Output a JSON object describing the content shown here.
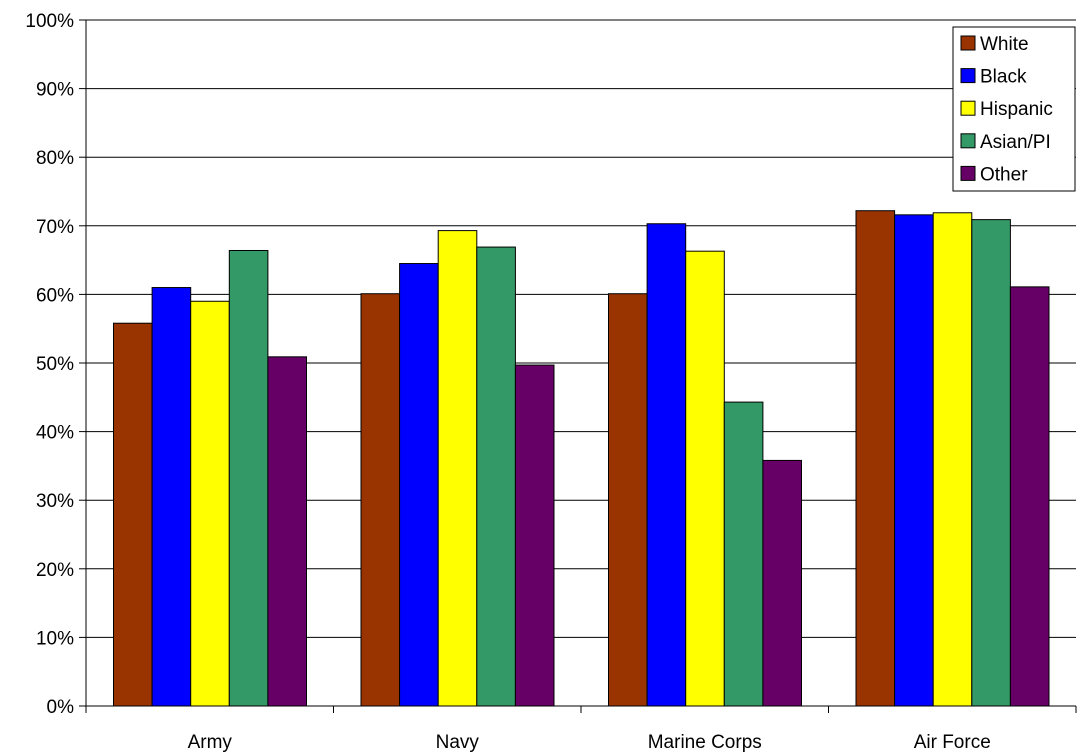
{
  "chart_data": {
    "type": "bar",
    "categories": [
      "Army",
      "Navy",
      "Marine Corps",
      "Air Force"
    ],
    "series": [
      {
        "name": "White",
        "color": "#993300",
        "values": [
          55.8,
          60.1,
          60.1,
          72.2
        ]
      },
      {
        "name": "Black",
        "color": "#0000FF",
        "values": [
          61.0,
          64.5,
          70.3,
          71.6
        ]
      },
      {
        "name": "Hispanic",
        "color": "#FFFF00",
        "values": [
          59.0,
          69.3,
          66.3,
          71.9
        ]
      },
      {
        "name": "Asian/PI",
        "color": "#339966",
        "values": [
          66.4,
          66.9,
          44.3,
          70.9
        ]
      },
      {
        "name": "Other",
        "color": "#660066",
        "values": [
          50.9,
          49.7,
          35.8,
          61.1
        ]
      }
    ],
    "ylim": [
      0,
      100
    ],
    "ytick_labels": [
      "0%",
      "10%",
      "20%",
      "30%",
      "40%",
      "50%",
      "60%",
      "70%",
      "80%",
      "90%",
      "100%"
    ],
    "grid": true,
    "legend_position": "top-right",
    "title": "",
    "xlabel": "",
    "ylabel": ""
  }
}
